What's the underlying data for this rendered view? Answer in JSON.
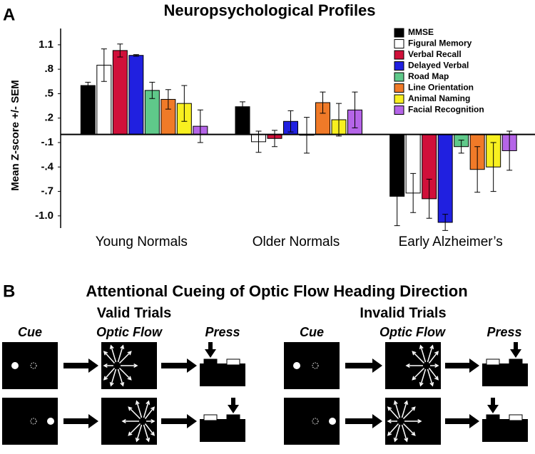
{
  "panel_labels": [
    "A",
    "B"
  ],
  "chart_data": {
    "type": "bar",
    "title": "Neuropsychological Profiles",
    "y_label": "Mean Z-score +/- SEM",
    "categories": [
      "Young  Normals",
      "Older Normals",
      "Early Alzheimer’s"
    ],
    "ylim": [
      -1.15,
      1.3
    ],
    "yticks": [
      1.1,
      {
        "value": 0.8,
        "label": ".8"
      },
      {
        "value": 0.5,
        "label": ".5"
      },
      {
        "value": 0.2,
        "label": ".2"
      },
      {
        "value": -0.1,
        "label": "-.1"
      },
      {
        "value": -0.4,
        "label": "-.4"
      },
      {
        "value": -0.7,
        "label": "-.7"
      },
      {
        "value": -1.0,
        "label": "-1.0"
      }
    ],
    "legend": "top-right",
    "series": [
      {
        "name": "MMSE",
        "color": "#000000",
        "values": [
          0.6,
          0.34,
          -0.76
        ],
        "errors": [
          0.04,
          0.06,
          0.36
        ]
      },
      {
        "name": "Figural Memory",
        "color": "#ffffff",
        "values": [
          0.85,
          -0.09,
          -0.72
        ],
        "errors": [
          0.2,
          0.13,
          0.24
        ]
      },
      {
        "name": "Verbal Recall",
        "color": "#d0103a",
        "values": [
          1.03,
          -0.05,
          -0.79
        ],
        "errors": [
          0.08,
          0.1,
          0.24
        ]
      },
      {
        "name": "Delayed Verbal",
        "color": "#2020e0",
        "values": [
          0.97,
          0.16,
          -1.08
        ],
        "errors": [
          0.01,
          0.13,
          0.1
        ]
      },
      {
        "name": "Road Map",
        "color": "#5fc98a",
        "values": [
          0.54,
          -0.01,
          -0.15
        ],
        "errors": [
          0.1,
          0.22,
          0.08
        ]
      },
      {
        "name": "Line Orientation",
        "color": "#f07a28",
        "values": [
          0.43,
          0.39,
          -0.43
        ],
        "errors": [
          0.12,
          0.13,
          0.28
        ]
      },
      {
        "name": "Animal Naming",
        "color": "#f8f020",
        "values": [
          0.38,
          0.18,
          -0.4
        ],
        "errors": [
          0.22,
          0.2,
          0.3
        ]
      },
      {
        "name": "Facial Recognition",
        "color": "#b565e8",
        "values": [
          0.1,
          0.3,
          -0.2
        ],
        "errors": [
          0.2,
          0.22,
          0.24
        ]
      }
    ]
  },
  "panel_b": {
    "title": "Attentional Cueing of Optic Flow Heading Direction",
    "groups": [
      {
        "title": "Valid Trials",
        "columns": [
          "Cue",
          "Optic Flow",
          "Press"
        ]
      },
      {
        "title": "Invalid Trials",
        "columns": [
          "Cue",
          "Optic Flow",
          "Press"
        ]
      }
    ]
  }
}
